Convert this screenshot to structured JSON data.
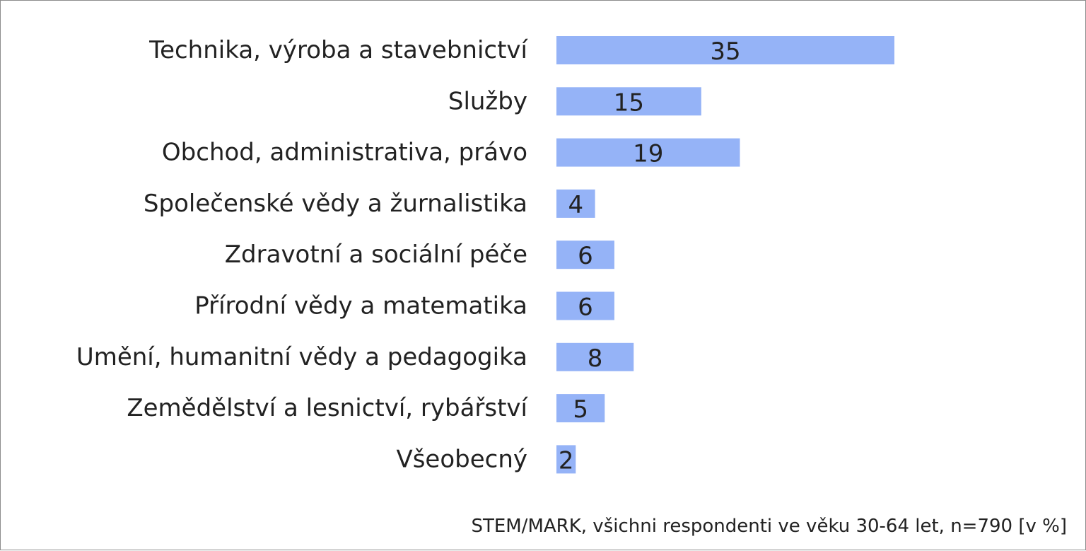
{
  "chart_data": {
    "type": "bar",
    "orientation": "horizontal",
    "categories": [
      "Technika, výroba a stavebnictví",
      "Služby",
      "Obchod, administrativa, právo",
      "Společenské vědy a žurnalistika",
      "Zdravotní a sociální péče",
      "Přírodní vědy a matematika",
      "Umění, humanitní vědy a pedagogika",
      "Zemědělství a lesnictví, rybářství",
      "Všeobecný"
    ],
    "values": [
      35,
      15,
      19,
      4,
      6,
      6,
      8,
      5,
      2
    ],
    "data_labels": [
      "35",
      "15",
      "19",
      "4",
      "6",
      "6",
      "8",
      "5",
      "2"
    ],
    "xlim": [
      0,
      35
    ],
    "grid": false,
    "legend": "none",
    "bar_color": "#95B3F7",
    "label_color": "#222222"
  },
  "source_note": "STEM/MARK, všichni respondenti ve věku 30-64 let, n=790 [v %]"
}
